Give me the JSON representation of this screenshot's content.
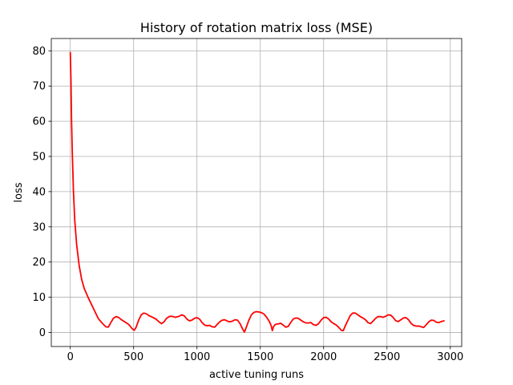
{
  "chart_data": {
    "type": "line",
    "title": "History of rotation matrix loss (MSE)",
    "xlabel": "active tuning runs",
    "ylabel": "loss",
    "xlim": [
      -150,
      3090
    ],
    "ylim": [
      -4,
      83.5
    ],
    "xticks": [
      0,
      500,
      1000,
      1500,
      2000,
      2500,
      3000
    ],
    "yticks": [
      0,
      10,
      20,
      30,
      40,
      50,
      60,
      70,
      80
    ],
    "grid": true,
    "line_color": "#ff0000",
    "series": [
      {
        "points": [
          [
            0,
            79.5
          ],
          [
            5,
            72
          ],
          [
            10,
            60
          ],
          [
            15,
            52
          ],
          [
            25,
            40
          ],
          [
            35,
            32
          ],
          [
            50,
            25
          ],
          [
            70,
            19
          ],
          [
            90,
            15
          ],
          [
            110,
            12.5
          ],
          [
            140,
            10
          ],
          [
            180,
            7
          ],
          [
            220,
            4
          ],
          [
            250,
            2.7
          ],
          [
            280,
            1.6
          ],
          [
            300,
            1.5
          ],
          [
            320,
            2.8
          ],
          [
            340,
            4
          ],
          [
            360,
            4.5
          ],
          [
            380,
            4.3
          ],
          [
            400,
            3.7
          ],
          [
            430,
            3
          ],
          [
            460,
            2.3
          ],
          [
            490,
            1
          ],
          [
            505,
            0.6
          ],
          [
            520,
            1.5
          ],
          [
            540,
            3.5
          ],
          [
            560,
            5
          ],
          [
            580,
            5.5
          ],
          [
            600,
            5.3
          ],
          [
            620,
            4.8
          ],
          [
            650,
            4.3
          ],
          [
            680,
            3.7
          ],
          [
            700,
            3
          ],
          [
            720,
            2.5
          ],
          [
            740,
            3
          ],
          [
            760,
            4
          ],
          [
            780,
            4.5
          ],
          [
            800,
            4.6
          ],
          [
            830,
            4.3
          ],
          [
            860,
            4.6
          ],
          [
            880,
            5
          ],
          [
            900,
            4.7
          ],
          [
            920,
            3.8
          ],
          [
            940,
            3.3
          ],
          [
            960,
            3.5
          ],
          [
            980,
            4
          ],
          [
            1000,
            4.2
          ],
          [
            1020,
            3.8
          ],
          [
            1040,
            2.8
          ],
          [
            1060,
            2.1
          ],
          [
            1080,
            1.9
          ],
          [
            1100,
            2
          ],
          [
            1120,
            1.6
          ],
          [
            1140,
            1.5
          ],
          [
            1160,
            2.3
          ],
          [
            1180,
            3
          ],
          [
            1200,
            3.5
          ],
          [
            1220,
            3.6
          ],
          [
            1240,
            3.2
          ],
          [
            1260,
            3
          ],
          [
            1280,
            3.2
          ],
          [
            1300,
            3.6
          ],
          [
            1320,
            3.5
          ],
          [
            1340,
            2.5
          ],
          [
            1360,
            1
          ],
          [
            1375,
            0.1
          ],
          [
            1390,
            1.5
          ],
          [
            1410,
            3.5
          ],
          [
            1430,
            5
          ],
          [
            1450,
            5.7
          ],
          [
            1470,
            5.9
          ],
          [
            1490,
            5.8
          ],
          [
            1510,
            5.6
          ],
          [
            1530,
            5.2
          ],
          [
            1550,
            4.3
          ],
          [
            1570,
            3.2
          ],
          [
            1585,
            2
          ],
          [
            1595,
            0.5
          ],
          [
            1605,
            1.7
          ],
          [
            1620,
            2.3
          ],
          [
            1640,
            2.4
          ],
          [
            1660,
            2.6
          ],
          [
            1680,
            2.1
          ],
          [
            1700,
            1.5
          ],
          [
            1720,
            1.7
          ],
          [
            1740,
            2.8
          ],
          [
            1760,
            3.8
          ],
          [
            1780,
            4.1
          ],
          [
            1800,
            4
          ],
          [
            1820,
            3.5
          ],
          [
            1840,
            3
          ],
          [
            1860,
            2.7
          ],
          [
            1880,
            2.7
          ],
          [
            1900,
            2.8
          ],
          [
            1920,
            2.2
          ],
          [
            1940,
            2
          ],
          [
            1960,
            2.5
          ],
          [
            1980,
            3.5
          ],
          [
            2000,
            4.2
          ],
          [
            2020,
            4.3
          ],
          [
            2040,
            3.8
          ],
          [
            2060,
            3
          ],
          [
            2080,
            2.5
          ],
          [
            2100,
            2.1
          ],
          [
            2120,
            1.4
          ],
          [
            2140,
            0.6
          ],
          [
            2155,
            0.5
          ],
          [
            2170,
            1.8
          ],
          [
            2190,
            3.3
          ],
          [
            2210,
            4.8
          ],
          [
            2230,
            5.5
          ],
          [
            2250,
            5.5
          ],
          [
            2270,
            5
          ],
          [
            2290,
            4.5
          ],
          [
            2310,
            4.1
          ],
          [
            2330,
            3.6
          ],
          [
            2350,
            2.8
          ],
          [
            2370,
            2.5
          ],
          [
            2390,
            3.2
          ],
          [
            2410,
            4
          ],
          [
            2430,
            4.5
          ],
          [
            2450,
            4.5
          ],
          [
            2470,
            4.3
          ],
          [
            2490,
            4.6
          ],
          [
            2510,
            5
          ],
          [
            2530,
            4.9
          ],
          [
            2550,
            4.2
          ],
          [
            2570,
            3.3
          ],
          [
            2590,
            3.1
          ],
          [
            2610,
            3.6
          ],
          [
            2630,
            4.1
          ],
          [
            2650,
            4.2
          ],
          [
            2670,
            3.6
          ],
          [
            2690,
            2.6
          ],
          [
            2710,
            2
          ],
          [
            2730,
            1.8
          ],
          [
            2750,
            1.8
          ],
          [
            2770,
            1.6
          ],
          [
            2790,
            1.4
          ],
          [
            2810,
            2.2
          ],
          [
            2830,
            3
          ],
          [
            2850,
            3.5
          ],
          [
            2870,
            3.4
          ],
          [
            2890,
            2.9
          ],
          [
            2910,
            2.8
          ],
          [
            2930,
            3.1
          ],
          [
            2950,
            3.3
          ]
        ]
      }
    ]
  }
}
